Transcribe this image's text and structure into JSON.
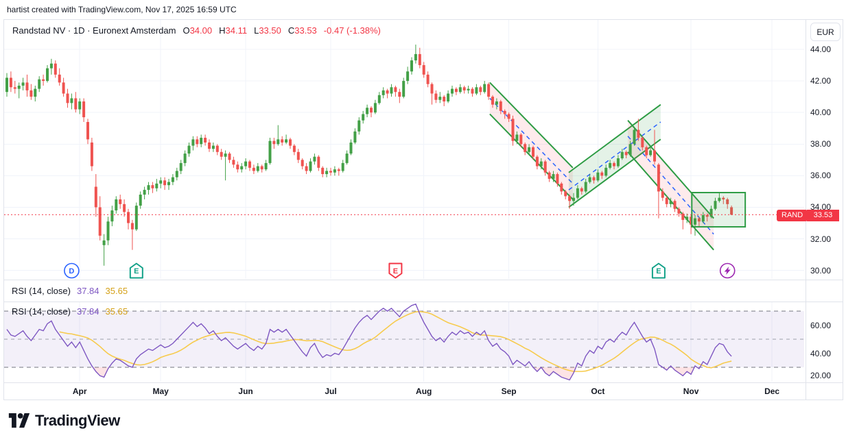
{
  "top_bar": {
    "attribution": "hartist created with TradingView.com, Nov 17, 2025 16:59 UTC"
  },
  "main_legend": {
    "title": "Randstad NV · 1D · Euronext Amsterdam",
    "o_label": "O",
    "o": "34.00",
    "h_label": "H",
    "h": "34.11",
    "l_label": "L",
    "l": "33.50",
    "c_label": "C",
    "c": "33.53",
    "change": "-0.47 (-1.38%)"
  },
  "rsi_legend": {
    "name": "RSI (14, close)",
    "value": "37.84",
    "ma_value": "35.65"
  },
  "price_axis": {
    "currency_button": "EUR",
    "symbol_tag": "RAND",
    "last_price_label": "33.53"
  },
  "footer": {
    "logo_text": "TradingView"
  },
  "chart_data": {
    "type": "candlestick",
    "symbol": "Randstad NV",
    "interval": "1D",
    "exchange": "Euronext Amsterdam",
    "currency": "EUR",
    "title": "Randstad NV · 1D · Euronext Amsterdam",
    "last_quote": {
      "open": 34.0,
      "high": 34.11,
      "low": 33.5,
      "close": 33.53,
      "change": -0.47,
      "change_pct": -1.38
    },
    "last_price": 33.53,
    "price_gridlines": [
      30,
      32,
      34,
      36,
      38,
      40,
      42,
      44
    ],
    "price_ticks": [
      {
        "label": "44.00",
        "value": 44
      },
      {
        "label": "42.00",
        "value": 42
      },
      {
        "label": "40.00",
        "value": 40
      },
      {
        "label": "38.00",
        "value": 38
      },
      {
        "label": "36.00",
        "value": 36
      },
      {
        "label": "34.00",
        "value": 34
      },
      {
        "label": "32.00",
        "value": 32
      },
      {
        "label": "30.00",
        "value": 30
      }
    ],
    "start_date": "2025-03-06",
    "months": [
      {
        "label": "Apr",
        "index": 18
      },
      {
        "label": "May",
        "index": 38
      },
      {
        "label": "Jun",
        "index": 59
      },
      {
        "label": "Jul",
        "index": 80
      },
      {
        "label": "Aug",
        "index": 103
      },
      {
        "label": "Sep",
        "index": 124
      },
      {
        "label": "Oct",
        "index": 146
      },
      {
        "label": "Nov",
        "index": 169
      },
      {
        "label": "Dec",
        "index": 189
      }
    ],
    "candles": [
      [
        41.3,
        42.5,
        41.0,
        42.2
      ],
      [
        42.2,
        42.6,
        41.3,
        41.6
      ],
      [
        41.6,
        42.0,
        41.2,
        41.5
      ],
      [
        41.5,
        41.9,
        40.9,
        41.7
      ],
      [
        41.7,
        42.2,
        41.4,
        41.9
      ],
      [
        41.9,
        42.4,
        41.0,
        41.4
      ],
      [
        41.4,
        41.8,
        40.8,
        41.0
      ],
      [
        41.0,
        41.7,
        40.7,
        41.5
      ],
      [
        41.5,
        42.3,
        41.3,
        42.1
      ],
      [
        42.1,
        42.4,
        41.7,
        42.0
      ],
      [
        42.0,
        43.0,
        41.9,
        42.8
      ],
      [
        42.8,
        43.4,
        42.4,
        43.1
      ],
      [
        43.1,
        43.3,
        42.2,
        42.4
      ],
      [
        42.4,
        42.8,
        41.7,
        41.9
      ],
      [
        41.9,
        42.2,
        41.0,
        41.2
      ],
      [
        41.2,
        41.5,
        40.3,
        40.6
      ],
      [
        40.6,
        41.2,
        40.2,
        40.9
      ],
      [
        40.9,
        41.3,
        40.0,
        40.2
      ],
      [
        40.2,
        40.9,
        39.9,
        40.7
      ],
      [
        40.7,
        40.9,
        39.4,
        39.7
      ],
      [
        39.4,
        39.6,
        38.0,
        38.3
      ],
      [
        38.1,
        38.4,
        36.3,
        36.6
      ],
      [
        35.3,
        36.1,
        33.4,
        34.0
      ],
      [
        34.0,
        34.7,
        31.9,
        32.2
      ],
      [
        31.6,
        32.3,
        30.3,
        31.9
      ],
      [
        31.9,
        33.4,
        31.6,
        33.1
      ],
      [
        33.1,
        34.1,
        32.8,
        33.8
      ],
      [
        33.8,
        34.7,
        33.6,
        34.5
      ],
      [
        34.5,
        34.8,
        33.9,
        34.2
      ],
      [
        34.2,
        34.5,
        33.4,
        33.7
      ],
      [
        33.7,
        33.9,
        32.6,
        33.0
      ],
      [
        33.0,
        33.2,
        31.3,
        32.6
      ],
      [
        32.6,
        34.3,
        32.5,
        34.1
      ],
      [
        34.1,
        35.0,
        33.9,
        34.8
      ],
      [
        34.8,
        35.3,
        34.5,
        35.1
      ],
      [
        35.1,
        35.6,
        34.8,
        35.4
      ],
      [
        35.4,
        35.6,
        34.9,
        35.2
      ],
      [
        35.2,
        35.8,
        35.0,
        35.5
      ],
      [
        35.5,
        35.9,
        35.2,
        35.7
      ],
      [
        35.7,
        35.9,
        35.1,
        35.4
      ],
      [
        35.4,
        35.8,
        35.1,
        35.6
      ],
      [
        35.6,
        36.1,
        35.4,
        35.9
      ],
      [
        35.9,
        36.5,
        35.7,
        36.3
      ],
      [
        36.3,
        37.0,
        36.1,
        36.8
      ],
      [
        36.8,
        37.6,
        36.6,
        37.4
      ],
      [
        37.4,
        38.1,
        37.2,
        37.9
      ],
      [
        37.9,
        38.5,
        37.6,
        38.3
      ],
      [
        38.3,
        38.5,
        37.8,
        38.0
      ],
      [
        38.0,
        38.6,
        37.8,
        38.4
      ],
      [
        38.4,
        38.6,
        37.9,
        38.1
      ],
      [
        38.1,
        38.3,
        37.5,
        37.7
      ],
      [
        37.7,
        38.1,
        37.5,
        37.9
      ],
      [
        37.9,
        38.0,
        37.3,
        37.5
      ],
      [
        37.5,
        37.7,
        37.0,
        37.2
      ],
      [
        37.2,
        37.6,
        35.7,
        37.4
      ],
      [
        37.4,
        37.5,
        36.8,
        37.0
      ],
      [
        37.0,
        37.2,
        36.5,
        36.7
      ],
      [
        36.7,
        36.9,
        36.2,
        36.4
      ],
      [
        36.4,
        36.8,
        36.2,
        36.6
      ],
      [
        36.6,
        37.1,
        36.4,
        36.9
      ],
      [
        36.9,
        37.0,
        36.3,
        36.5
      ],
      [
        36.5,
        36.7,
        36.1,
        36.3
      ],
      [
        36.3,
        36.8,
        36.2,
        36.6
      ],
      [
        36.6,
        36.7,
        36.2,
        36.4
      ],
      [
        36.4,
        37.0,
        36.3,
        36.8
      ],
      [
        36.8,
        38.4,
        36.7,
        38.2
      ],
      [
        38.2,
        38.4,
        37.7,
        38.0
      ],
      [
        38.0,
        39.2,
        37.9,
        38.3
      ],
      [
        38.3,
        38.5,
        37.9,
        38.1
      ],
      [
        38.1,
        38.6,
        38.0,
        38.3
      ],
      [
        38.3,
        38.4,
        37.7,
        37.9
      ],
      [
        37.9,
        38.0,
        37.3,
        37.5
      ],
      [
        37.5,
        37.7,
        36.8,
        37.0
      ],
      [
        37.0,
        37.1,
        36.4,
        36.6
      ],
      [
        36.6,
        36.8,
        36.1,
        36.3
      ],
      [
        36.3,
        37.1,
        36.2,
        36.9
      ],
      [
        36.9,
        37.4,
        36.7,
        37.2
      ],
      [
        37.2,
        37.3,
        36.3,
        36.5
      ],
      [
        36.5,
        36.6,
        35.9,
        36.1
      ],
      [
        36.1,
        36.5,
        35.9,
        36.3
      ],
      [
        36.3,
        36.5,
        36.0,
        36.2
      ],
      [
        36.2,
        36.6,
        36.0,
        36.4
      ],
      [
        36.4,
        36.5,
        36.0,
        36.3
      ],
      [
        36.3,
        37.0,
        36.2,
        36.8
      ],
      [
        36.8,
        37.6,
        36.7,
        37.4
      ],
      [
        37.4,
        38.3,
        37.3,
        38.1
      ],
      [
        38.1,
        39.0,
        38.0,
        38.8
      ],
      [
        38.8,
        39.7,
        38.6,
        39.5
      ],
      [
        39.5,
        40.1,
        39.3,
        39.9
      ],
      [
        39.9,
        40.5,
        39.7,
        40.3
      ],
      [
        40.3,
        40.4,
        39.7,
        40.0
      ],
      [
        40.0,
        40.8,
        39.9,
        40.6
      ],
      [
        40.6,
        41.3,
        40.5,
        41.1
      ],
      [
        41.1,
        41.6,
        40.9,
        41.4
      ],
      [
        41.4,
        41.5,
        40.9,
        41.2
      ],
      [
        41.2,
        41.8,
        41.0,
        41.6
      ],
      [
        41.6,
        41.7,
        41.0,
        41.3
      ],
      [
        41.3,
        41.5,
        40.6,
        41.0
      ],
      [
        41.0,
        42.2,
        40.9,
        42.0
      ],
      [
        42.0,
        42.9,
        41.8,
        42.6
      ],
      [
        42.6,
        43.5,
        42.4,
        43.3
      ],
      [
        43.3,
        44.3,
        43.1,
        43.7
      ],
      [
        43.7,
        44.1,
        42.8,
        43.0
      ],
      [
        43.0,
        43.2,
        42.2,
        42.4
      ],
      [
        42.4,
        42.6,
        41.6,
        41.8
      ],
      [
        41.8,
        41.9,
        40.5,
        41.2
      ],
      [
        41.2,
        41.4,
        40.6,
        40.8
      ],
      [
        40.8,
        41.3,
        40.6,
        41.0
      ],
      [
        41.0,
        41.1,
        40.4,
        40.7
      ],
      [
        40.7,
        41.4,
        40.6,
        41.2
      ],
      [
        41.2,
        41.7,
        41.0,
        41.5
      ],
      [
        41.5,
        41.6,
        41.1,
        41.3
      ],
      [
        41.3,
        41.8,
        41.2,
        41.6
      ],
      [
        41.6,
        41.7,
        41.2,
        41.4
      ],
      [
        41.4,
        41.7,
        41.2,
        41.5
      ],
      [
        41.5,
        41.6,
        41.0,
        41.2
      ],
      [
        41.2,
        41.8,
        41.1,
        41.6
      ],
      [
        41.6,
        41.7,
        41.1,
        41.3
      ],
      [
        41.3,
        42.0,
        41.2,
        41.8
      ],
      [
        41.8,
        41.9,
        40.8,
        41.0
      ],
      [
        41.0,
        41.1,
        40.3,
        40.5
      ],
      [
        40.5,
        40.9,
        40.2,
        40.7
      ],
      [
        40.7,
        40.8,
        39.9,
        40.1
      ],
      [
        40.1,
        40.2,
        39.6,
        39.9
      ],
      [
        39.9,
        40.0,
        39.4,
        39.6
      ],
      [
        39.6,
        39.8,
        37.9,
        38.2
      ],
      [
        38.2,
        38.8,
        38.0,
        38.6
      ],
      [
        38.6,
        38.7,
        37.8,
        38.0
      ],
      [
        38.0,
        38.1,
        37.3,
        37.5
      ],
      [
        37.5,
        38.0,
        37.4,
        37.8
      ],
      [
        37.8,
        37.9,
        37.0,
        37.2
      ],
      [
        37.2,
        37.3,
        36.4,
        36.6
      ],
      [
        36.6,
        37.1,
        36.4,
        36.9
      ],
      [
        36.9,
        37.0,
        36.0,
        36.2
      ],
      [
        36.2,
        36.3,
        35.6,
        35.8
      ],
      [
        35.8,
        36.3,
        35.6,
        36.1
      ],
      [
        36.1,
        36.2,
        35.3,
        35.5
      ],
      [
        35.5,
        35.6,
        34.8,
        35.0
      ],
      [
        35.0,
        35.1,
        34.5,
        34.7
      ],
      [
        34.7,
        34.8,
        33.9,
        34.4
      ],
      [
        34.4,
        34.9,
        34.1,
        34.6
      ],
      [
        34.6,
        35.4,
        34.5,
        35.2
      ],
      [
        35.2,
        35.3,
        34.8,
        35.0
      ],
      [
        35.0,
        35.8,
        34.9,
        35.6
      ],
      [
        35.6,
        36.1,
        35.5,
        35.9
      ],
      [
        35.9,
        36.0,
        35.5,
        35.7
      ],
      [
        35.7,
        36.4,
        35.6,
        36.2
      ],
      [
        36.2,
        36.3,
        35.8,
        36.0
      ],
      [
        36.0,
        36.7,
        35.9,
        36.5
      ],
      [
        36.5,
        37.0,
        36.4,
        36.8
      ],
      [
        36.8,
        36.9,
        36.4,
        36.6
      ],
      [
        36.6,
        37.3,
        36.5,
        37.1
      ],
      [
        37.1,
        37.7,
        37.0,
        37.5
      ],
      [
        37.5,
        37.6,
        37.1,
        37.3
      ],
      [
        37.3,
        38.2,
        37.2,
        38.0
      ],
      [
        38.0,
        39.1,
        37.9,
        38.9
      ],
      [
        38.9,
        39.6,
        38.2,
        38.4
      ],
      [
        38.4,
        38.5,
        37.6,
        37.8
      ],
      [
        37.8,
        37.9,
        37.1,
        37.3
      ],
      [
        37.3,
        37.8,
        37.2,
        37.6
      ],
      [
        37.6,
        38.9,
        36.7,
        36.9
      ],
      [
        36.7,
        36.8,
        33.3,
        35.0
      ],
      [
        35.0,
        35.2,
        34.4,
        34.6
      ],
      [
        34.6,
        34.7,
        34.0,
        34.2
      ],
      [
        34.2,
        34.6,
        34.0,
        34.4
      ],
      [
        34.4,
        34.5,
        33.7,
        33.9
      ],
      [
        33.9,
        34.0,
        33.4,
        33.6
      ],
      [
        33.6,
        33.7,
        32.6,
        33.2
      ],
      [
        33.2,
        33.6,
        33.0,
        33.4
      ],
      [
        33.4,
        33.5,
        32.3,
        32.9
      ],
      [
        32.9,
        33.5,
        32.2,
        33.3
      ],
      [
        33.3,
        33.4,
        32.8,
        33.1
      ],
      [
        33.1,
        33.7,
        33.0,
        33.5
      ],
      [
        33.5,
        33.6,
        33.1,
        33.4
      ],
      [
        33.4,
        34.1,
        33.3,
        33.9
      ],
      [
        33.9,
        34.6,
        33.8,
        34.4
      ],
      [
        34.4,
        34.9,
        34.3,
        34.6
      ],
      [
        34.6,
        34.7,
        34.2,
        34.5
      ],
      [
        34.5,
        34.6,
        33.9,
        34.2
      ],
      [
        34.0,
        34.11,
        33.5,
        33.53
      ]
    ],
    "rsi": {
      "period": 14,
      "source": "close",
      "current": 37.84,
      "ma_current": 35.65,
      "levels": [
        30,
        50,
        70
      ],
      "axis_ticks": [
        {
          "label": "60.00",
          "value": 60
        },
        {
          "label": "40.00",
          "value": 40
        },
        {
          "label": "20.00",
          "value": 20
        }
      ],
      "values": [
        57,
        53,
        52,
        54,
        56,
        52,
        49,
        53,
        57,
        56,
        61,
        63,
        57,
        53,
        49,
        45,
        48,
        44,
        48,
        42,
        36,
        31,
        27,
        24,
        23,
        29,
        33,
        36,
        35,
        33,
        31,
        30,
        36,
        39,
        41,
        43,
        42,
        44,
        46,
        44,
        45,
        47,
        50,
        53,
        56,
        59,
        62,
        59,
        61,
        58,
        54,
        56,
        52,
        49,
        51,
        48,
        45,
        43,
        45,
        47,
        44,
        42,
        45,
        43,
        47,
        57,
        55,
        57,
        55,
        57,
        53,
        49,
        45,
        41,
        38,
        44,
        47,
        41,
        37,
        39,
        38,
        40,
        39,
        43,
        48,
        53,
        58,
        62,
        65,
        67,
        64,
        67,
        70,
        72,
        70,
        72,
        69,
        66,
        70,
        72,
        74,
        75,
        68,
        62,
        57,
        52,
        49,
        51,
        48,
        52,
        55,
        53,
        56,
        54,
        55,
        52,
        55,
        53,
        56,
        49,
        45,
        47,
        43,
        41,
        38,
        32,
        35,
        33,
        31,
        34,
        30,
        27,
        30,
        26,
        24,
        27,
        25,
        23,
        22,
        21,
        26,
        33,
        31,
        38,
        42,
        40,
        45,
        43,
        48,
        50,
        48,
        52,
        55,
        53,
        58,
        62,
        57,
        52,
        48,
        50,
        43,
        32,
        30,
        28,
        31,
        28,
        26,
        24,
        27,
        25,
        31,
        29,
        34,
        32,
        38,
        44,
        47,
        46,
        41,
        37.84
      ]
    },
    "markers": [
      {
        "type": "dividend",
        "letter": "D",
        "index": 16,
        "color": "#2962ff",
        "shape": "circle"
      },
      {
        "type": "earnings",
        "letter": "E",
        "index": 32,
        "color": "#12a188",
        "shape": "house"
      },
      {
        "type": "earnings",
        "letter": "E",
        "index": 96,
        "color": "#f23645",
        "shape": "shield"
      },
      {
        "type": "earnings",
        "letter": "E",
        "index": 161,
        "color": "#12a188",
        "shape": "house"
      },
      {
        "type": "power",
        "letter": "",
        "index": 178,
        "color": "#9c27b0",
        "shape": "bolt"
      }
    ],
    "drawings": {
      "channels": [
        {
          "direction": "down",
          "x1": 119.3,
          "x2": 139.8,
          "top1": 41.9,
          "top2": 36.5,
          "bottom1": 39.9,
          "bottom2": 34.5,
          "fill": "rgba(242,54,69,0.10)"
        },
        {
          "direction": "up",
          "x1": 138.8,
          "x2": 161.5,
          "top1": 36.2,
          "top2": 40.5,
          "bottom1": 34.0,
          "bottom2": 38.3,
          "fill": "rgba(45,156,68,0.13)"
        },
        {
          "direction": "down",
          "x1": 153.4,
          "x2": 174.6,
          "top1": 39.5,
          "top2": 33.3,
          "bottom1": 37.5,
          "bottom2": 31.3,
          "fill": "rgba(242,54,69,0.10)"
        }
      ],
      "box": {
        "x1": 169.2,
        "x2": 182.4,
        "top": 34.93,
        "bottom": 32.76,
        "fill": "rgba(45,156,68,0.13)",
        "border": "#2d9c44"
      }
    },
    "colors": {
      "up": "#43a047",
      "down": "#ef5350",
      "accent_red": "#f23645",
      "rsi_line": "#7e57c2",
      "rsi_ma_line": "#f7cb4d",
      "rsi_band_fill": "rgba(126,87,194,0.09)",
      "rsi_oversold_fill": "rgba(242,54,69,0.14)",
      "level_dash": "#73767f",
      "mid_dash": "#9ea1ab",
      "grid": "#f0f3fa",
      "frame": "#e0e3eb",
      "channel_border": "#2d9c44",
      "channel_midline": "#2962ff"
    }
  }
}
